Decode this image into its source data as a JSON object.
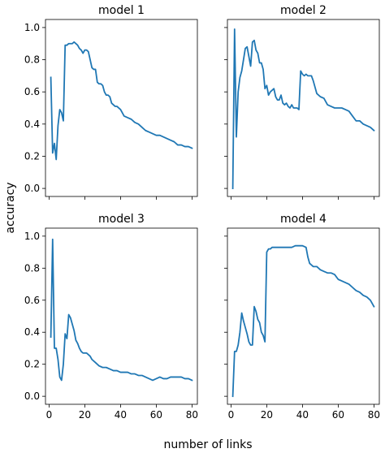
{
  "figure": {
    "xlabel": "number of links",
    "ylabel": "accuracy",
    "line_color": "#1f77b4",
    "shared_x": true,
    "shared_y": true
  },
  "chart_data": [
    {
      "type": "line",
      "title": "model 1",
      "xlim": [
        -2,
        83
      ],
      "ylim": [
        -0.05,
        1.05
      ],
      "xticks": [
        0,
        20,
        40,
        60,
        80
      ],
      "yticks": [
        0.0,
        0.2,
        0.4,
        0.6,
        0.8,
        1.0
      ],
      "show_xtick_labels": false,
      "show_ytick_labels": true,
      "series": [
        {
          "x": [
            1,
            2,
            3,
            4,
            5,
            6,
            7,
            8,
            9,
            10,
            11,
            12,
            13,
            14,
            15,
            16,
            17,
            18,
            19,
            20,
            21,
            22,
            23,
            24,
            25,
            26,
            27,
            28,
            29,
            30,
            31,
            32,
            33,
            34,
            35,
            36,
            37,
            38,
            40,
            42,
            44,
            46,
            48,
            50,
            52,
            54,
            56,
            58,
            60,
            62,
            64,
            66,
            68,
            70,
            72,
            74,
            76,
            78,
            80
          ],
          "y": [
            0.69,
            0.22,
            0.28,
            0.18,
            0.39,
            0.49,
            0.47,
            0.42,
            0.89,
            0.89,
            0.9,
            0.9,
            0.9,
            0.91,
            0.9,
            0.89,
            0.87,
            0.86,
            0.84,
            0.86,
            0.86,
            0.85,
            0.8,
            0.75,
            0.74,
            0.74,
            0.66,
            0.65,
            0.65,
            0.64,
            0.6,
            0.58,
            0.58,
            0.57,
            0.53,
            0.52,
            0.51,
            0.51,
            0.49,
            0.45,
            0.44,
            0.43,
            0.41,
            0.4,
            0.38,
            0.36,
            0.35,
            0.34,
            0.33,
            0.33,
            0.32,
            0.31,
            0.3,
            0.29,
            0.27,
            0.27,
            0.26,
            0.26,
            0.25
          ]
        }
      ]
    },
    {
      "type": "line",
      "title": "model 2",
      "xlim": [
        -2,
        83
      ],
      "ylim": [
        -0.05,
        1.05
      ],
      "xticks": [
        0,
        20,
        40,
        60,
        80
      ],
      "yticks": [
        0.0,
        0.2,
        0.4,
        0.6,
        0.8,
        1.0
      ],
      "show_xtick_labels": false,
      "show_ytick_labels": false,
      "series": [
        {
          "x": [
            1,
            2,
            3,
            4,
            5,
            6,
            7,
            8,
            9,
            10,
            11,
            12,
            13,
            14,
            15,
            16,
            17,
            18,
            19,
            20,
            21,
            22,
            23,
            24,
            25,
            26,
            27,
            28,
            29,
            30,
            31,
            32,
            33,
            34,
            35,
            36,
            37,
            38,
            39,
            40,
            41,
            42,
            43,
            44,
            45,
            46,
            48,
            50,
            52,
            54,
            56,
            58,
            60,
            62,
            64,
            66,
            68,
            70,
            72,
            74,
            76,
            78,
            80
          ],
          "y": [
            0.0,
            0.99,
            0.32,
            0.6,
            0.69,
            0.73,
            0.8,
            0.87,
            0.88,
            0.82,
            0.76,
            0.91,
            0.92,
            0.86,
            0.84,
            0.78,
            0.78,
            0.74,
            0.62,
            0.64,
            0.58,
            0.6,
            0.61,
            0.62,
            0.57,
            0.55,
            0.55,
            0.58,
            0.53,
            0.52,
            0.53,
            0.51,
            0.5,
            0.52,
            0.5,
            0.5,
            0.5,
            0.49,
            0.73,
            0.71,
            0.7,
            0.71,
            0.7,
            0.7,
            0.7,
            0.67,
            0.59,
            0.57,
            0.56,
            0.52,
            0.51,
            0.5,
            0.5,
            0.5,
            0.49,
            0.48,
            0.45,
            0.42,
            0.42,
            0.4,
            0.39,
            0.38,
            0.36
          ]
        }
      ]
    },
    {
      "type": "line",
      "title": "model 3",
      "xlim": [
        -2,
        83
      ],
      "ylim": [
        -0.05,
        1.05
      ],
      "xticks": [
        0,
        20,
        40,
        60,
        80
      ],
      "yticks": [
        0.0,
        0.2,
        0.4,
        0.6,
        0.8,
        1.0
      ],
      "show_xtick_labels": true,
      "show_ytick_labels": true,
      "series": [
        {
          "x": [
            1,
            2,
            3,
            4,
            5,
            6,
            7,
            8,
            9,
            10,
            11,
            12,
            13,
            14,
            15,
            16,
            17,
            18,
            19,
            20,
            21,
            22,
            23,
            24,
            26,
            28,
            30,
            32,
            34,
            36,
            38,
            40,
            42,
            44,
            46,
            48,
            50,
            52,
            54,
            56,
            58,
            60,
            62,
            64,
            66,
            68,
            70,
            72,
            74,
            76,
            78,
            80
          ],
          "y": [
            0.37,
            0.98,
            0.3,
            0.3,
            0.23,
            0.12,
            0.1,
            0.2,
            0.39,
            0.36,
            0.51,
            0.49,
            0.45,
            0.41,
            0.35,
            0.33,
            0.3,
            0.28,
            0.27,
            0.27,
            0.27,
            0.26,
            0.25,
            0.23,
            0.21,
            0.19,
            0.18,
            0.18,
            0.17,
            0.16,
            0.16,
            0.15,
            0.15,
            0.15,
            0.14,
            0.14,
            0.13,
            0.13,
            0.12,
            0.11,
            0.1,
            0.11,
            0.12,
            0.11,
            0.11,
            0.12,
            0.12,
            0.12,
            0.12,
            0.11,
            0.11,
            0.1
          ]
        }
      ]
    },
    {
      "type": "line",
      "title": "model 4",
      "xlim": [
        -2,
        83
      ],
      "ylim": [
        -0.05,
        1.05
      ],
      "xticks": [
        0,
        20,
        40,
        60,
        80
      ],
      "yticks": [
        0.0,
        0.2,
        0.4,
        0.6,
        0.8,
        1.0
      ],
      "show_xtick_labels": true,
      "show_ytick_labels": false,
      "series": [
        {
          "x": [
            1,
            2,
            3,
            4,
            5,
            6,
            7,
            8,
            9,
            10,
            11,
            12,
            13,
            14,
            15,
            16,
            17,
            18,
            19,
            20,
            21,
            22,
            23,
            24,
            26,
            28,
            30,
            32,
            34,
            36,
            38,
            40,
            42,
            43,
            44,
            46,
            48,
            50,
            52,
            54,
            56,
            58,
            60,
            62,
            64,
            66,
            68,
            70,
            72,
            74,
            76,
            78,
            80
          ],
          "y": [
            0.0,
            0.28,
            0.28,
            0.32,
            0.4,
            0.52,
            0.47,
            0.43,
            0.39,
            0.34,
            0.32,
            0.32,
            0.56,
            0.53,
            0.48,
            0.46,
            0.4,
            0.38,
            0.34,
            0.9,
            0.92,
            0.92,
            0.93,
            0.93,
            0.93,
            0.93,
            0.93,
            0.93,
            0.93,
            0.94,
            0.94,
            0.94,
            0.93,
            0.87,
            0.83,
            0.81,
            0.81,
            0.79,
            0.78,
            0.77,
            0.77,
            0.76,
            0.73,
            0.72,
            0.71,
            0.7,
            0.68,
            0.66,
            0.65,
            0.63,
            0.62,
            0.6,
            0.56
          ]
        }
      ]
    }
  ]
}
